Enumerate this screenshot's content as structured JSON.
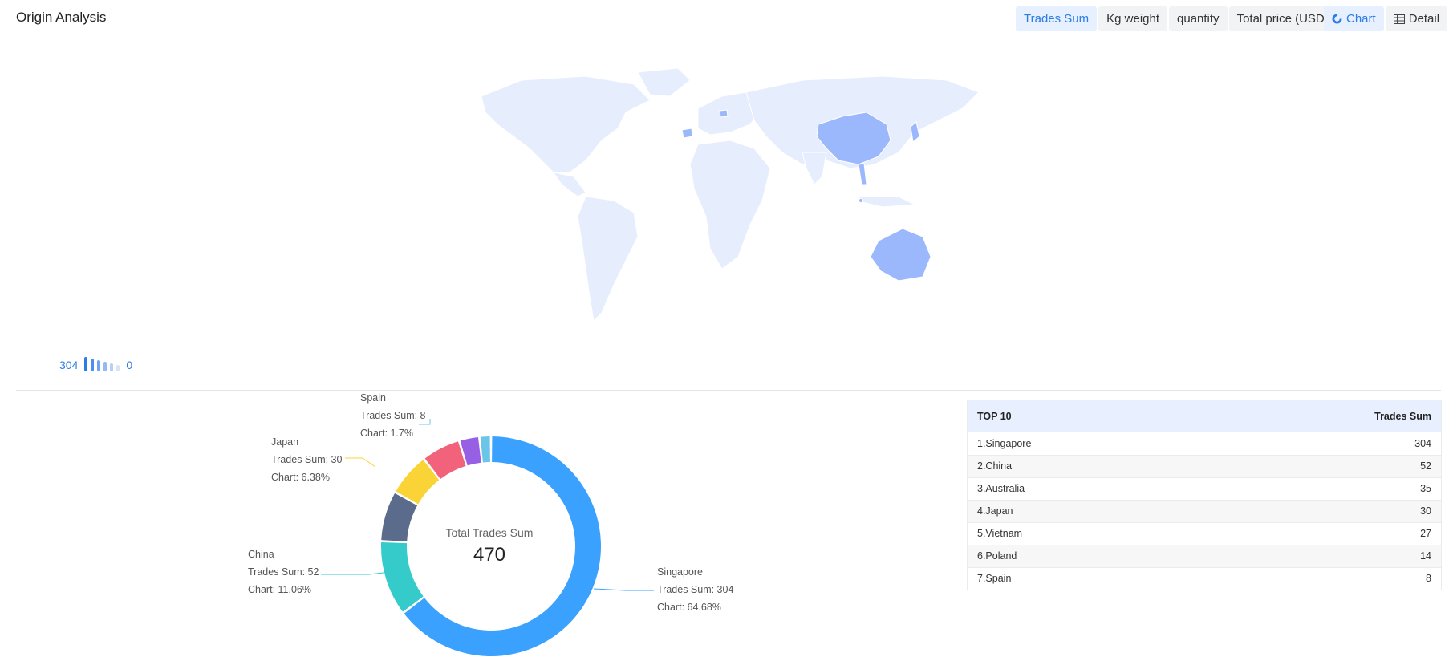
{
  "header": {
    "title": "Origin Analysis",
    "metric_tabs": [
      "Trades Sum",
      "Kg weight",
      "quantity",
      "Total price (USD)"
    ],
    "active_metric": "Trades Sum",
    "view_tabs": [
      {
        "label": "Chart",
        "icon": "pie-chart-icon"
      },
      {
        "label": "Detail",
        "icon": "table-icon"
      }
    ],
    "active_view": "Chart"
  },
  "map": {
    "legend_max": "304",
    "legend_min": "0",
    "highlighted": [
      "China",
      "Australia",
      "Spain",
      "Poland",
      "Japan",
      "Vietnam",
      "Singapore"
    ],
    "colors": {
      "base": "#e6edfd",
      "highlight": "#9ab8fb",
      "accent": "#2d7ce6"
    }
  },
  "donut": {
    "center_label": "Total Trades Sum",
    "center_value": "470",
    "labels": [
      {
        "name": "Spain",
        "line1": "Trades Sum: 8",
        "line2": "Chart: 1.7%"
      },
      {
        "name": "Japan",
        "line1": "Trades Sum: 30",
        "line2": "Chart: 6.38%"
      },
      {
        "name": "China",
        "line1": "Trades Sum: 52",
        "line2": "Chart: 11.06%"
      },
      {
        "name": "Singapore",
        "line1": "Trades Sum: 304",
        "line2": "Chart: 64.68%"
      }
    ]
  },
  "chart_data": {
    "type": "pie",
    "categories": [
      "Singapore",
      "China",
      "Australia",
      "Japan",
      "Vietnam",
      "Poland",
      "Spain"
    ],
    "values": [
      304,
      52,
      35,
      30,
      27,
      14,
      8
    ],
    "colors": [
      "#3ba1ff",
      "#36cbcb",
      "#5a6b8c",
      "#fad337",
      "#f2637b",
      "#975fe4",
      "#6cc5e8"
    ],
    "total": 470
  },
  "table": {
    "headers": [
      "TOP 10",
      "Trades Sum"
    ],
    "rows": [
      [
        "1.Singapore",
        "304"
      ],
      [
        "2.China",
        "52"
      ],
      [
        "3.Australia",
        "35"
      ],
      [
        "4.Japan",
        "30"
      ],
      [
        "5.Vietnam",
        "27"
      ],
      [
        "6.Poland",
        "14"
      ],
      [
        "7.Spain",
        "8"
      ]
    ]
  }
}
